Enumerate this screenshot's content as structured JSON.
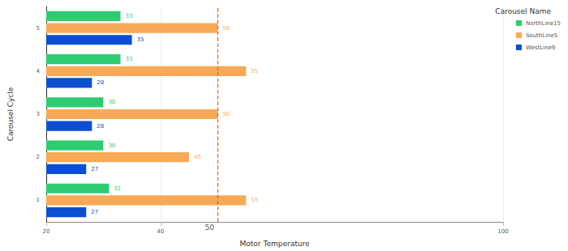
{
  "chart_data": {
    "type": "bar",
    "orientation": "horizontal",
    "x_label": "Motor Temperature",
    "y_label": "Carousel Cycle",
    "legend_title": "Carousel Name",
    "legend": "top-right",
    "categories": [
      "1",
      "2",
      "3",
      "4",
      "5"
    ],
    "series": [
      {
        "name": "NorthLine15",
        "color": "#2ecc71",
        "values": [
          31,
          30,
          30,
          33,
          33
        ]
      },
      {
        "name": "SouthLine5",
        "color": "#f7a957",
        "values": [
          55,
          45,
          50,
          55,
          50
        ]
      },
      {
        "name": "WestLine9",
        "color": "#0b4fd1",
        "values": [
          27,
          27,
          28,
          28,
          35
        ]
      }
    ],
    "xlim": [
      20,
      100
    ],
    "xticks": [
      20,
      40,
      100
    ],
    "reference_lines": [
      50
    ],
    "data_labels": true,
    "grid": true
  }
}
